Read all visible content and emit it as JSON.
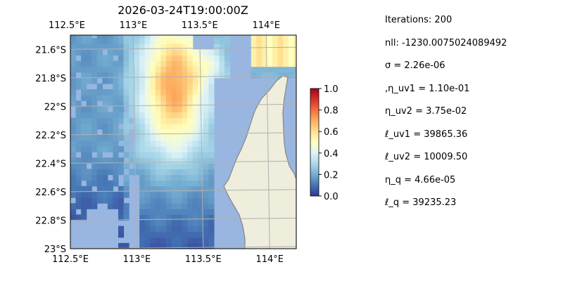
{
  "chart_data": {
    "type": "heatmap",
    "title": "2026-03-24T19:00:00Z",
    "x_ticks": [
      "112.5°E",
      "113°E",
      "113.5°E",
      "114°E"
    ],
    "x_tick_values": [
      112.5,
      113.0,
      113.5,
      114.0
    ],
    "y_ticks": [
      "21.6°S",
      "21.8°S",
      "22°S",
      "22.2°S",
      "22.4°S",
      "22.6°S",
      "22.8°S",
      "23°S"
    ],
    "y_tick_values": [
      -21.6,
      -21.8,
      -22.0,
      -22.2,
      -22.4,
      -22.6,
      -22.8,
      -23.0
    ],
    "xlim": [
      112.5,
      114.2
    ],
    "ylim": [
      -23.0,
      -21.5
    ],
    "grid": true,
    "colorbar": {
      "ticks": [
        "0.0",
        "0.2",
        "0.4",
        "0.6",
        "0.8",
        "1.0"
      ],
      "tick_values": [
        0.0,
        0.2,
        0.4,
        0.6,
        0.8,
        1.0
      ],
      "range": [
        0,
        1
      ],
      "colormap": "RdYlBu_r"
    },
    "colors": {
      "ocean": "#98b6e0",
      "land": "#efeddc",
      "coastline": "#8a8a8a",
      "grid": "#b0b0b0"
    },
    "note": "Gridded field over ocean; high values (~0.6–0.75) in the north-central band near 113.2°E, decreasing to ~0.1 in the south near 23°S; small high patch (~0.55) at the top right near 114°E, 21.6°S."
  },
  "stats": [
    "Iterations: 200",
    "nll: -1230.0075024089492",
    "σ = 2.26e-06",
    ",η_uv1 = 1.10e-01",
    "η_uv2 = 3.75e-02",
    "ℓ_uv1 = 39865.36",
    "ℓ_uv2 = 10009.50",
    "η_q = 4.66e-05",
    "ℓ_q = 39235.23"
  ]
}
